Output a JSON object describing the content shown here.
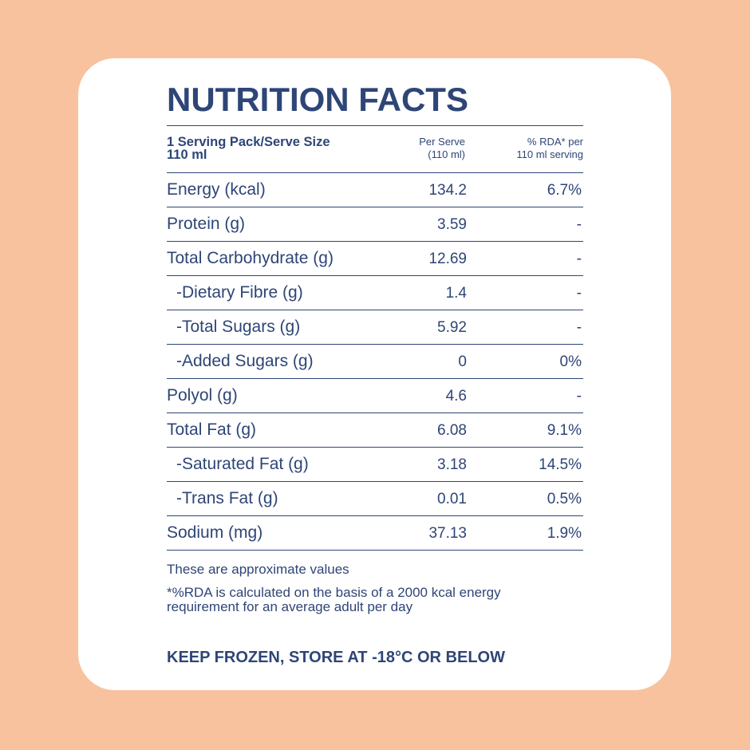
{
  "title": "NUTRITION FACTS",
  "header": {
    "serving_line1": "1 Serving Pack/Serve Size",
    "serving_line2": "110 ml",
    "per_serve_line1": "Per Serve",
    "per_serve_line2": "(110 ml)",
    "rda_line1": "% RDA* per",
    "rda_line2": "110 ml serving"
  },
  "rows": [
    {
      "name": "Energy (kcal)",
      "value": "134.2",
      "rda": "6.7%"
    },
    {
      "name": "Protein (g)",
      "value": "3.59",
      "rda": "-"
    },
    {
      "name": "Total Carbohydrate (g)",
      "value": "12.69",
      "rda": "-"
    },
    {
      "name": "-Dietary Fibre (g)",
      "value": "1.4",
      "rda": "-"
    },
    {
      "name": "-Total Sugars (g)",
      "value": "5.92",
      "rda": "-"
    },
    {
      "name": "-Added Sugars (g)",
      "value": "0",
      "rda": "0%"
    },
    {
      "name": "Polyol (g)",
      "value": "4.6",
      "rda": "-"
    },
    {
      "name": "Total Fat (g)",
      "value": "6.08",
      "rda": "9.1%"
    },
    {
      "name": "-Saturated Fat (g)",
      "value": "3.18",
      "rda": "14.5%"
    },
    {
      "name": "-Trans Fat (g)",
      "value": "0.01",
      "rda": "0.5%"
    },
    {
      "name": "Sodium (mg)",
      "value": "37.13",
      "rda": "1.9%"
    }
  ],
  "notes": {
    "approx": "These are approximate values",
    "rda_line1": "*%RDA is calculated on the basis of a 2000 kcal energy",
    "rda_line2": "requirement for an average adult per day"
  },
  "storage": "KEEP FROZEN, STORE AT -18°C OR BELOW",
  "colors": {
    "background": "#F8C29E",
    "card": "#FFFFFF",
    "text": "#2E4577"
  }
}
